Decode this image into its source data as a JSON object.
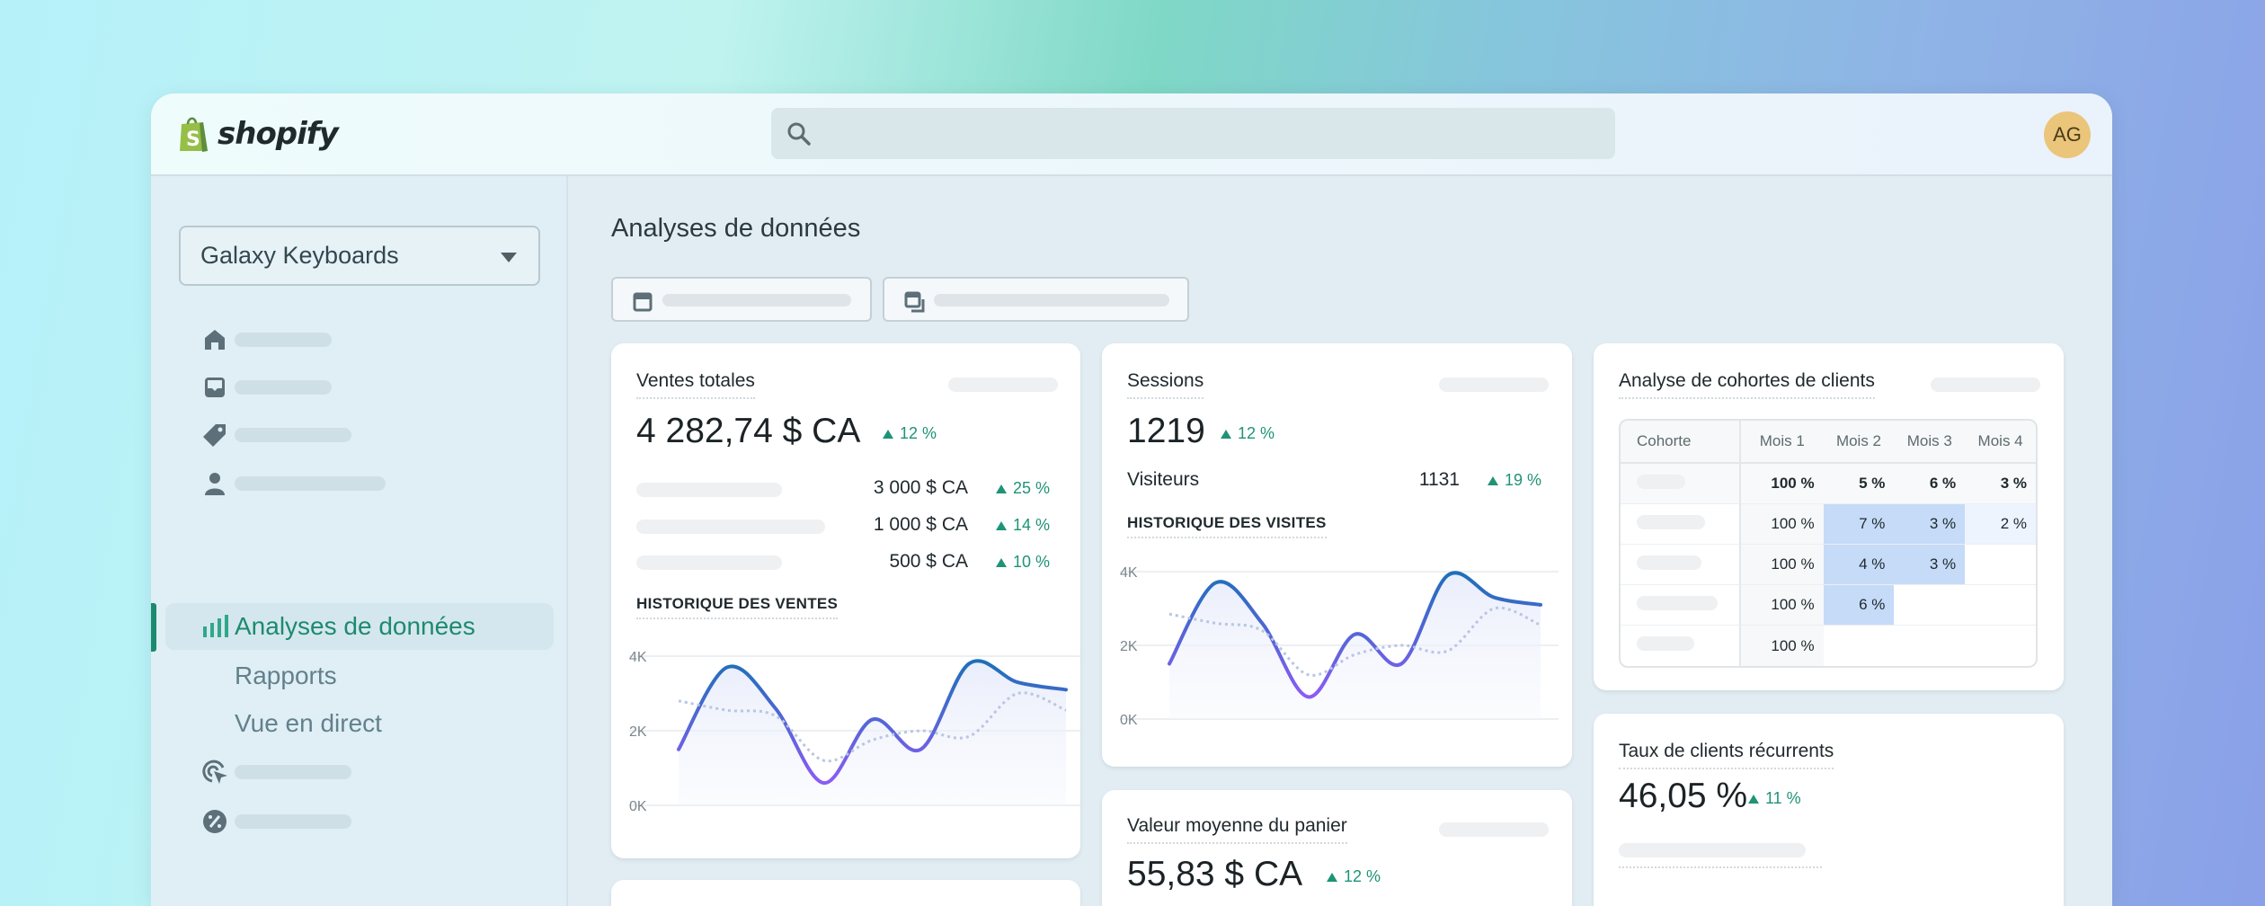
{
  "brand": {
    "name": "shopify",
    "logo_color": "#95bf47"
  },
  "header": {
    "search_placeholder": "",
    "avatar_initials": "AG",
    "avatar_color": "#eac57a"
  },
  "sidebar": {
    "store_selector": "Galaxy Keyboards",
    "items": [
      {
        "icon": "home-icon",
        "label": ""
      },
      {
        "icon": "inbox-icon",
        "label": ""
      },
      {
        "icon": "tag-icon",
        "label": ""
      },
      {
        "icon": "person-icon",
        "label": ""
      },
      {
        "icon": "bar-chart-icon",
        "label": "Analyses de données",
        "active": true
      },
      {
        "icon": "",
        "label": "Rapports"
      },
      {
        "icon": "",
        "label": "Vue en direct"
      },
      {
        "icon": "target-cursor-icon",
        "label": ""
      },
      {
        "icon": "discount-badge-icon",
        "label": ""
      }
    ],
    "accent": "#1d8a6f"
  },
  "main": {
    "title": "Analyses de données",
    "filters": [
      {
        "icon": "calendar-icon"
      },
      {
        "icon": "compare-calendar-icon"
      }
    ],
    "sales": {
      "title": "Ventes totales",
      "value": "4 282,74 $ CA",
      "delta": "12 %",
      "rows": [
        {
          "value": "3 000 $ CA",
          "delta": "25 %"
        },
        {
          "value": "1 000 $ CA",
          "delta": "14 %"
        },
        {
          "value": "500 $ CA",
          "delta": "10 %"
        }
      ],
      "chart_title": "HISTORIQUE DES VENTES"
    },
    "sessions": {
      "title": "Sessions",
      "value": "1219",
      "delta": "12 %",
      "visitors_label": "Visiteurs",
      "visitors_value": "1131",
      "visitors_delta": "19 %",
      "chart_title": "HISTORIQUE DES VISITES"
    },
    "aov": {
      "title": "Valeur moyenne du panier",
      "value": "55,83 $ CA",
      "delta": "12 %"
    },
    "cohort": {
      "title": "Analyse de cohortes de clients",
      "headers": [
        "Cohorte",
        "Mois 1",
        "Mois 2",
        "Mois 3",
        "Mois 4"
      ],
      "rows": [
        [
          "100 %",
          "5 %",
          "6 %",
          "3 %"
        ],
        [
          "100 %",
          "7 %",
          "3 %",
          "2 %"
        ],
        [
          "100 %",
          "4 %",
          "3 %",
          ""
        ],
        [
          "100 %",
          "6 %",
          "",
          ""
        ],
        [
          "100 %",
          "",
          "",
          ""
        ]
      ]
    },
    "returning": {
      "title": "Taux de clients récurrents",
      "value": "46,05 %",
      "delta": "11 %"
    },
    "positive_color": "#1f9377"
  },
  "chart_data": [
    {
      "type": "line",
      "title": "HISTORIQUE DES VENTES",
      "yticks": [
        "0K",
        "2K",
        "4K"
      ],
      "ylim": [
        0,
        4000
      ],
      "grid": true,
      "series": [
        {
          "style": "solid",
          "values": [
            1500,
            3700,
            2600,
            600,
            2300,
            1500,
            3800,
            3300,
            3100
          ]
        },
        {
          "style": "dashed",
          "values": [
            2800,
            2550,
            2400,
            1200,
            1750,
            2000,
            1850,
            3000,
            2550
          ]
        }
      ]
    },
    {
      "type": "line",
      "title": "HISTORIQUE DES VISITES",
      "yticks": [
        "0K",
        "2K",
        "4K"
      ],
      "ylim": [
        0,
        4000
      ],
      "grid": true,
      "series": [
        {
          "style": "solid",
          "values": [
            1500,
            3700,
            2600,
            600,
            2300,
            1500,
            3900,
            3300,
            3100
          ]
        },
        {
          "style": "dashed",
          "values": [
            2850,
            2600,
            2400,
            1200,
            1750,
            2000,
            1850,
            3000,
            2550
          ]
        }
      ]
    }
  ]
}
